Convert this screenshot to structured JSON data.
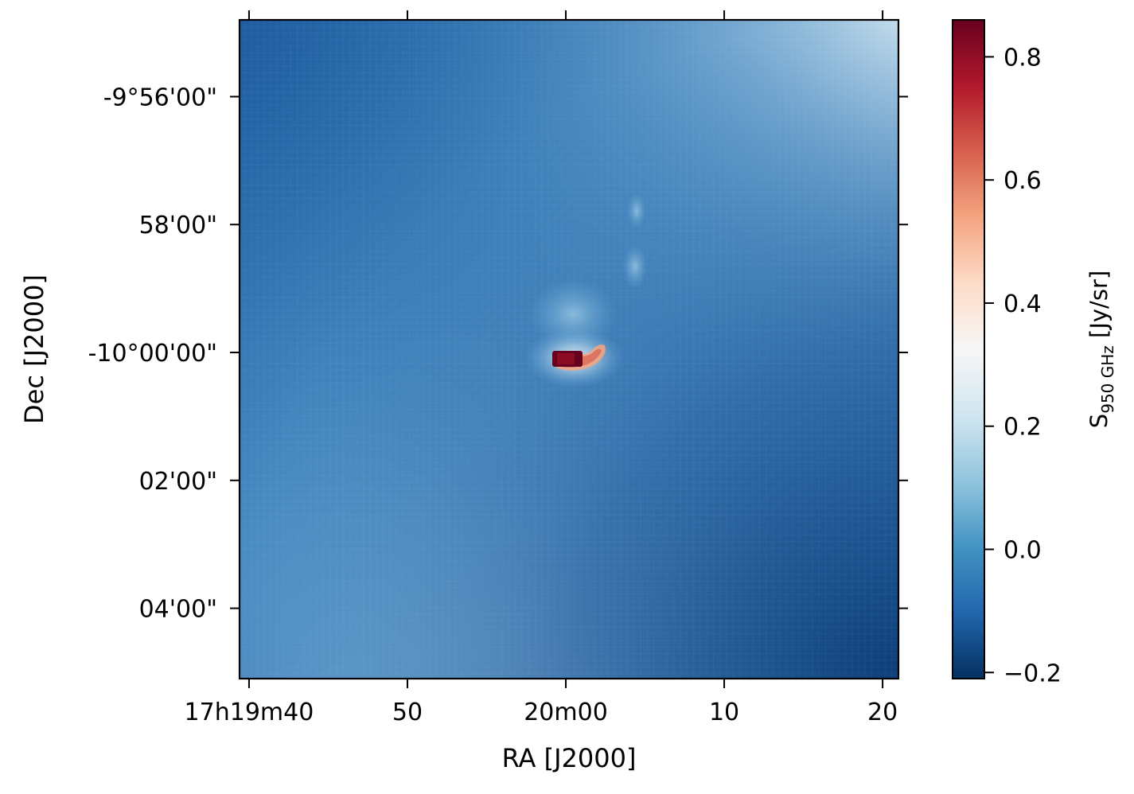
{
  "chart_data": {
    "type": "heatmap",
    "title": "",
    "xlabel": "RA [J2000]",
    "ylabel": "Dec [J2000]",
    "x_ticks": [
      {
        "label": "17h19m40",
        "value": 0
      },
      {
        "label": "50",
        "value": 10
      },
      {
        "label": "20m00",
        "value": 20
      },
      {
        "label": "10",
        "value": 30
      },
      {
        "label": "20",
        "value": 40
      }
    ],
    "y_ticks": [
      {
        "label": "-9°56'00\"",
        "value": -4
      },
      {
        "label": "58'00\"",
        "value": -2
      },
      {
        "label": "-10°00'00\"",
        "value": 0
      },
      {
        "label": "02'00\"",
        "value": 2
      },
      {
        "label": "04'00\"",
        "value": 4
      }
    ],
    "colorbar": {
      "label_main": "S",
      "label_sub": "950 GHz",
      "label_unit": " [Jy/sr]",
      "range": [
        -0.21,
        0.86
      ],
      "ticks": [
        {
          "label": "0.8",
          "value": 0.8
        },
        {
          "label": "0.6",
          "value": 0.6
        },
        {
          "label": "0.4",
          "value": 0.4
        },
        {
          "label": "0.2",
          "value": 0.2
        },
        {
          "label": "0.0",
          "value": 0.0
        },
        {
          "label": "−0.2",
          "value": -0.2
        }
      ],
      "colormap": "RdBu_r"
    }
  }
}
